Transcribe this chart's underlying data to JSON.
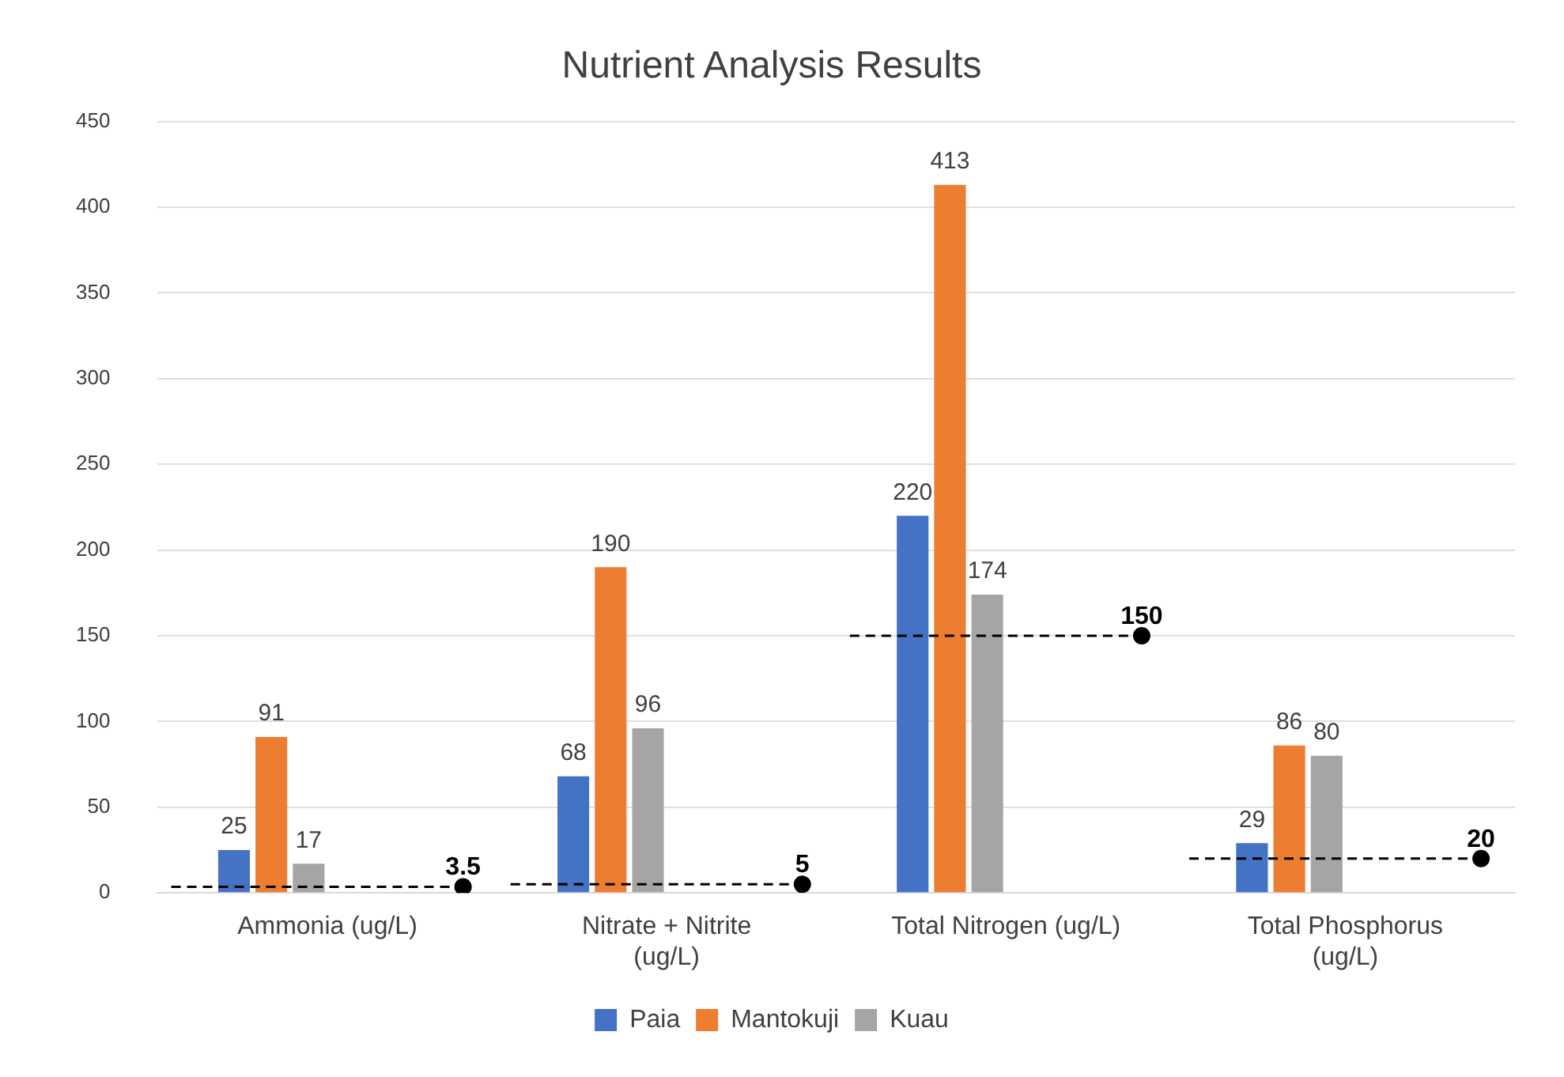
{
  "chart_data": {
    "type": "bar",
    "title": "Nutrient Analysis Results",
    "categories": [
      "Ammonia (ug/L)",
      "Nitrate + Nitrite (ug/L)",
      "Total Nitrogen (ug/L)",
      "Total Phosphorus (ug/L)"
    ],
    "series": [
      {
        "name": "Paia",
        "color": "#4472c4",
        "values": [
          25,
          68,
          220,
          29
        ]
      },
      {
        "name": "Mantokuji",
        "color": "#ed7d31",
        "values": [
          91,
          190,
          413,
          86
        ]
      },
      {
        "name": "Kuau",
        "color": "#a5a5a5",
        "values": [
          17,
          96,
          174,
          80
        ]
      },
      {
        "type": "scatter",
        "color": "#000000",
        "values": [
          3.5,
          5,
          150,
          20
        ],
        "marker": "circle",
        "line_style": "dashed"
      }
    ],
    "ylim": [
      0,
      450
    ],
    "yticks": [
      0,
      50,
      100,
      150,
      200,
      250,
      300,
      350,
      400,
      450
    ],
    "grid": "y",
    "legend": "bottom",
    "data_labels": true
  }
}
